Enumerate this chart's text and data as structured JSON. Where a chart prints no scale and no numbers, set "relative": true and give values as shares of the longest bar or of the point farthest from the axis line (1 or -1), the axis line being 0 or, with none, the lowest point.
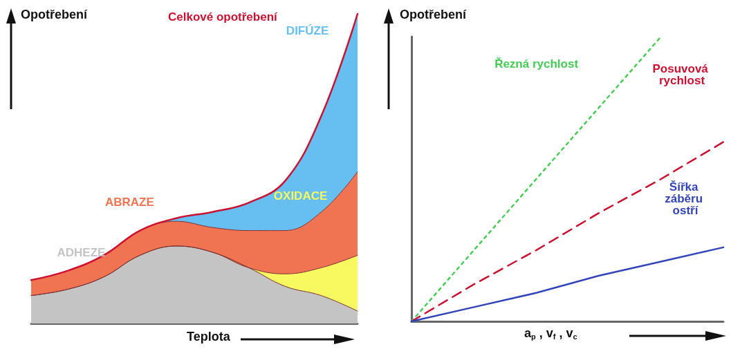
{
  "chart_data": [
    {
      "type": "area",
      "stacked": true,
      "relative": true,
      "ylabel": "Opotřebení",
      "xlabel": "Teplota",
      "grid": false,
      "legend": false,
      "marker": "none",
      "categories": [
        null,
        null,
        null,
        null,
        null,
        null,
        null,
        null,
        null,
        null
      ],
      "series": [
        {
          "name": "ADHEZE",
          "color": "#c4c4c4",
          "values": [
            0.09,
            0.11,
            0.15,
            0.22,
            0.25,
            0.23,
            0.18,
            0.12,
            0.09,
            0.04
          ]
        },
        {
          "name": "OXIDACE",
          "color": "#f8f860",
          "values": [
            0,
            0,
            0,
            0,
            0,
            0,
            0,
            0.04,
            0.09,
            0.18
          ]
        },
        {
          "name": "ABRAZE",
          "color": "#f07452",
          "values": [
            0.05,
            0.06,
            0.07,
            0.08,
            0.08,
            0.08,
            0.12,
            0.14,
            0.18,
            0.27
          ]
        },
        {
          "name": "DIFÚZE",
          "color": "#66bff0",
          "values": [
            0,
            0,
            0,
            0,
            0.01,
            0.05,
            0.09,
            0.16,
            0.31,
            0.51
          ]
        }
      ],
      "annotations": [
        "Celkové opotřebení"
      ]
    },
    {
      "type": "line",
      "relative": true,
      "ylabel": "Opotřebení",
      "xlabel": "a$_{p}$ , v$_{f}$ , v$_{c}$",
      "grid": false,
      "legend": false,
      "marker": "none",
      "categories": [
        null,
        null,
        null,
        null,
        null,
        null
      ],
      "series": [
        {
          "name": "Řezná rychlost",
          "color": "#44cc55",
          "line_style": "dotted",
          "values": [
            0,
            0.25,
            0.5,
            0.75,
            1.0,
            null
          ]
        },
        {
          "name": "Posuvová rychlost",
          "color": "#cc1030",
          "line_style": "dashed",
          "values": [
            0,
            0.13,
            0.25,
            0.38,
            0.5,
            0.63
          ]
        },
        {
          "name": "Šířka záběru ostří",
          "color": "#3344bb",
          "line_style": "solid",
          "values": [
            0,
            0.05,
            0.1,
            0.16,
            0.21,
            0.26
          ]
        }
      ]
    }
  ]
}
